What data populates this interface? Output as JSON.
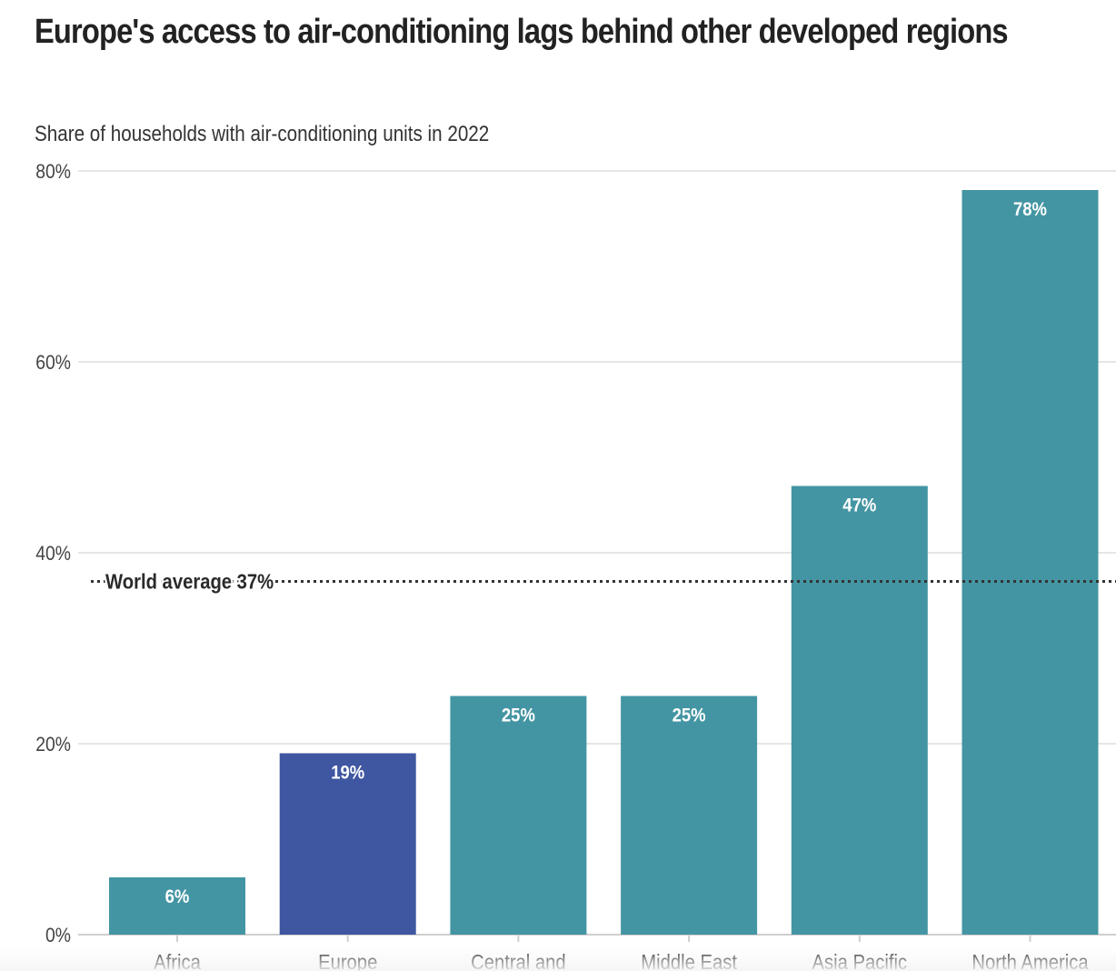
{
  "title": "Europe's access to air-conditioning lags behind other developed regions",
  "subtitle": "Share of households with air-conditioning units in 2022",
  "colors": {
    "default_bar": "#4495a3",
    "highlight_bar": "#3f56a1",
    "grid": "#e6e6e6",
    "text": "#333333",
    "reference": "#333333"
  },
  "chart_data": {
    "type": "bar",
    "title": "Europe's access to air-conditioning lags behind other developed regions",
    "subtitle": "Share of households with air-conditioning units in 2022",
    "categories": [
      "Africa",
      "Europe",
      "Central and",
      "Middle East",
      "Asia Pacific",
      "North America"
    ],
    "values": [
      6,
      19,
      25,
      25,
      47,
      78
    ],
    "value_labels": [
      "6%",
      "19%",
      "25%",
      "25%",
      "47%",
      "78%"
    ],
    "highlight": "Europe",
    "ylim": [
      0,
      80
    ],
    "yticks": [
      0,
      20,
      40,
      60,
      80
    ],
    "ytick_labels": [
      "0%",
      "20%",
      "40%",
      "60%",
      "80%"
    ],
    "xlabel": "",
    "ylabel": "",
    "grid": true,
    "reference_line": {
      "value": 37,
      "label": "World average 37%"
    }
  }
}
